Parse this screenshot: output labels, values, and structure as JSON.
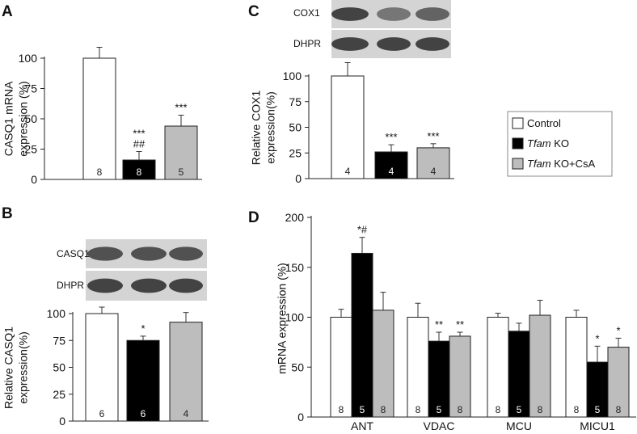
{
  "colors": {
    "control": "#ffffff",
    "ko": "#000000",
    "kocsa": "#bdbdbd",
    "axis": "#222222",
    "blot_bg": "#d4d4d4",
    "blot_band": "#3b3b3b"
  },
  "legend": {
    "items": [
      {
        "italic": "",
        "text": "Control",
        "color": "#ffffff"
      },
      {
        "italic": "Tfam",
        "text": " KO",
        "color": "#000000"
      },
      {
        "italic": "Tfam",
        "text": " KO+CsA",
        "color": "#bdbdbd"
      }
    ]
  },
  "chart_data": [
    {
      "panel": "A",
      "type": "bar",
      "ylabel": [
        "CASQ1 mRNA",
        "expression (%)"
      ],
      "ylim": [
        0,
        100
      ],
      "ticks": [
        0,
        25,
        50,
        75,
        100
      ],
      "values": [
        100,
        16,
        44
      ],
      "errors": [
        9,
        7,
        9
      ],
      "n": [
        "8",
        "8",
        "5"
      ],
      "sig": [
        [],
        [
          "***",
          "##"
        ],
        [
          "***"
        ]
      ]
    },
    {
      "panel": "B",
      "type": "bar",
      "ylabel": [
        "Relative CASQ1",
        "expression(%)"
      ],
      "ylim": [
        0,
        100
      ],
      "ticks": [
        0,
        25,
        50,
        75,
        100
      ],
      "values": [
        100,
        75,
        92
      ],
      "errors": [
        6,
        4,
        9
      ],
      "n": [
        "6",
        "6",
        "4"
      ],
      "sig": [
        [],
        [
          "*"
        ],
        []
      ],
      "blots": [
        "CASQ1",
        "DHPR"
      ]
    },
    {
      "panel": "C",
      "type": "bar",
      "ylabel": [
        "Relative COX1",
        "expression(%)"
      ],
      "ylim": [
        0,
        100
      ],
      "ticks": [
        0,
        25,
        50,
        75,
        100
      ],
      "values": [
        100,
        26,
        30
      ],
      "errors": [
        13,
        7,
        4
      ],
      "n": [
        "4",
        "4",
        "4"
      ],
      "sig": [
        [],
        [
          "***"
        ],
        [
          "***"
        ]
      ],
      "blots": [
        "COX1",
        "DHPR"
      ]
    },
    {
      "panel": "D",
      "type": "bar",
      "ylabel": [
        "mRNA expression (%)"
      ],
      "ylim": [
        0,
        200
      ],
      "ticks": [
        0,
        50,
        100,
        150,
        200
      ],
      "categories": [
        "ANT",
        "VDAC",
        "MCU",
        "MICU1"
      ],
      "series": [
        {
          "name": "Control",
          "values": [
            100,
            100,
            100,
            100
          ],
          "errors": [
            8,
            14,
            4,
            7
          ]
        },
        {
          "name": "Tfam KO",
          "values": [
            164,
            76,
            86,
            55
          ],
          "errors": [
            16,
            9,
            8,
            16
          ]
        },
        {
          "name": "Tfam KO+CsA",
          "values": [
            107,
            81,
            102,
            70
          ],
          "errors": [
            18,
            4,
            15,
            9
          ]
        }
      ],
      "n": [
        [
          "8",
          "5",
          "8"
        ],
        [
          "8",
          "5",
          "8"
        ],
        [
          "8",
          "5",
          "8"
        ],
        [
          "8",
          "5",
          "8"
        ]
      ],
      "sig": [
        [
          [],
          [
            "*#"
          ],
          []
        ],
        [
          [],
          [
            "**"
          ],
          [
            "**"
          ]
        ],
        [
          [],
          [],
          []
        ],
        [
          [],
          [
            "*"
          ],
          [
            "*"
          ]
        ]
      ]
    }
  ]
}
